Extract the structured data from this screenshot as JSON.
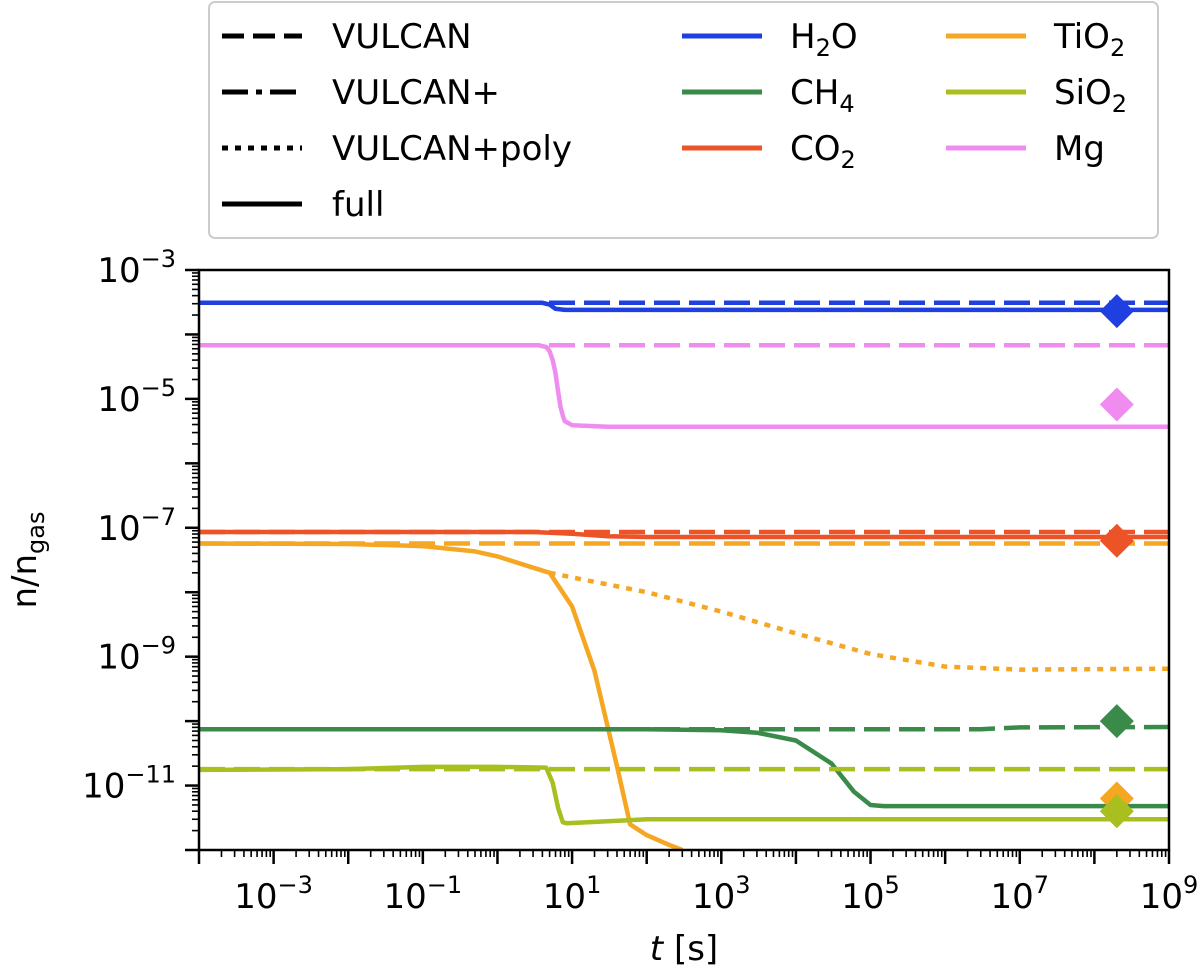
{
  "chart_data": {
    "type": "line",
    "xlabel_italic": "t",
    "xlabel_unit": " [s]",
    "ylabel_main": "n/n",
    "ylabel_sub": "gas",
    "xscale": "log",
    "yscale": "log",
    "xlim": [
      0.0001,
      1000000000
    ],
    "ylim": [
      1e-12,
      0.001
    ],
    "x_ticks": [
      {
        "value": 0.001,
        "base": "10",
        "exp": "−3"
      },
      {
        "value": 0.1,
        "base": "10",
        "exp": "−1"
      },
      {
        "value": 10,
        "base": "10",
        "exp": "1"
      },
      {
        "value": 1000,
        "base": "10",
        "exp": "3"
      },
      {
        "value": 100000,
        "base": "10",
        "exp": "5"
      },
      {
        "value": 10000000,
        "base": "10",
        "exp": "7"
      },
      {
        "value": 1000000000,
        "base": "10",
        "exp": "9"
      }
    ],
    "y_ticks": [
      {
        "value": 0.001,
        "base": "10",
        "exp": "−3"
      },
      {
        "value": 1e-05,
        "base": "10",
        "exp": "−5"
      },
      {
        "value": 1e-07,
        "base": "10",
        "exp": "−7"
      },
      {
        "value": 1e-09,
        "base": "10",
        "exp": "−9"
      },
      {
        "value": 1e-11,
        "base": "10",
        "exp": "−11"
      }
    ],
    "legend": {
      "placement": "top, above plot",
      "styles": [
        {
          "label": "VULCAN",
          "dash": "dashed"
        },
        {
          "label": "VULCAN+",
          "dash": "dashdot"
        },
        {
          "label": "VULCAN+poly",
          "dash": "dotted"
        },
        {
          "label": "full",
          "dash": "solid"
        }
      ],
      "species_col1": [
        {
          "base": "H",
          "sub": "2",
          "rest": "O",
          "color": "#1f3fe0"
        },
        {
          "base": "CH",
          "sub": "4",
          "rest": "",
          "color": "#3a8a4a"
        },
        {
          "base": "CO",
          "sub": "2",
          "rest": "",
          "color": "#ec5428"
        }
      ],
      "species_col2": [
        {
          "base": "TiO",
          "sub": "2",
          "rest": "",
          "color": "#f5a623"
        },
        {
          "base": "SiO",
          "sub": "2",
          "rest": "",
          "color": "#a8bf1f"
        },
        {
          "base": "Mg",
          "sub": "",
          "rest": "",
          "color": "#f08cf0"
        }
      ]
    },
    "series": [
      {
        "name": "H2O VULCAN",
        "species": "H2O",
        "color": "#1f3fe0",
        "style": "dashed",
        "x": [
          0.0001,
          1000000000
        ],
        "y": [
          0.00031,
          0.00031
        ]
      },
      {
        "name": "H2O full",
        "species": "H2O",
        "color": "#1f3fe0",
        "style": "solid",
        "x": [
          0.0001,
          4,
          5,
          6,
          8,
          30,
          1000000000
        ],
        "y": [
          0.00031,
          0.00031,
          0.00029,
          0.00025,
          0.00024,
          0.00024,
          0.00024
        ]
      },
      {
        "name": "Mg VULCAN",
        "species": "Mg",
        "color": "#f08cf0",
        "style": "dashed",
        "x": [
          0.0001,
          1000000000
        ],
        "y": [
          6.8e-05,
          6.8e-05
        ]
      },
      {
        "name": "Mg full",
        "species": "Mg",
        "color": "#f08cf0",
        "style": "solid",
        "x": [
          0.0001,
          3.5,
          4.5,
          5,
          5.5,
          6,
          6.5,
          7,
          7.5,
          8,
          10,
          30,
          1000000000
        ],
        "y": [
          6.8e-05,
          6.8e-05,
          6.4e-05,
          5.5e-05,
          4e-05,
          2.5e-05,
          1.3e-05,
          7.5e-06,
          5.5e-06,
          4.5e-06,
          3.9e-06,
          3.7e-06,
          3.7e-06
        ]
      },
      {
        "name": "CO2 VULCAN",
        "species": "CO2",
        "color": "#ec5428",
        "style": "dashed",
        "x": [
          0.0001,
          1000000000
        ],
        "y": [
          8.6e-08,
          8.6e-08
        ]
      },
      {
        "name": "CO2 full",
        "species": "CO2",
        "color": "#ec5428",
        "style": "solid",
        "x": [
          0.0001,
          3,
          10,
          30,
          100,
          1000000000
        ],
        "y": [
          8.6e-08,
          8.6e-08,
          8.1e-08,
          7.4e-08,
          7.2e-08,
          7.2e-08
        ]
      },
      {
        "name": "TiO2 VULCAN",
        "species": "TiO2",
        "color": "#f5a623",
        "style": "dashed",
        "x": [
          0.0001,
          1000000000
        ],
        "y": [
          5.7e-08,
          5.7e-08
        ]
      },
      {
        "name": "TiO2 VULCAN+poly",
        "species": "TiO2",
        "color": "#f5a623",
        "style": "dotted",
        "x": [
          5,
          10,
          100,
          1000,
          10000,
          100000,
          1000000,
          10000000,
          1000000000
        ],
        "y": [
          2e-08,
          1.7e-08,
          1e-08,
          5e-09,
          2.3e-09,
          1.1e-09,
          7e-10,
          6.3e-10,
          6.5e-10
        ]
      },
      {
        "name": "TiO2 full",
        "species": "TiO2",
        "color": "#f5a623",
        "style": "solid",
        "x": [
          0.0001,
          0.01,
          0.1,
          0.5,
          1,
          3,
          5,
          10,
          20,
          40,
          60,
          100,
          200,
          300
        ],
        "y": [
          5.7e-08,
          5.6e-08,
          5.2e-08,
          4.3e-08,
          3.6e-08,
          2.4e-08,
          2e-08,
          6e-09,
          6e-10,
          2e-11,
          2.5e-12,
          1.7e-12,
          1.2e-12,
          1e-12
        ]
      },
      {
        "name": "CH4 VULCAN",
        "species": "CH4",
        "color": "#3a8a4a",
        "style": "dashed",
        "x": [
          0.0001,
          3000000,
          10000000,
          1000000000
        ],
        "y": [
          7.5e-11,
          7.5e-11,
          8e-11,
          8.1e-11
        ]
      },
      {
        "name": "CH4 full",
        "species": "CH4",
        "color": "#3a8a4a",
        "style": "solid",
        "x": [
          0.0001,
          100,
          1000,
          3000,
          10000,
          30000,
          60000,
          100000,
          150000,
          1000000,
          1000000000
        ],
        "y": [
          7.5e-11,
          7.5e-11,
          7.2e-11,
          6.6e-11,
          5e-11,
          2.2e-11,
          8e-12,
          5e-12,
          4.8e-12,
          4.8e-12,
          4.8e-12
        ]
      },
      {
        "name": "SiO2 VULCAN",
        "species": "SiO2",
        "color": "#a8bf1f",
        "style": "dashed",
        "x": [
          0.0001,
          1000000000
        ],
        "y": [
          1.8e-11,
          1.8e-11
        ]
      },
      {
        "name": "SiO2 full",
        "species": "SiO2",
        "color": "#a8bf1f",
        "style": "solid",
        "x": [
          0.0001,
          0.01,
          0.1,
          1,
          4.5,
          5.5,
          6.5,
          7.5,
          8.5,
          100,
          1000000000
        ],
        "y": [
          1.75e-11,
          1.8e-11,
          1.95e-11,
          1.95e-11,
          1.9e-11,
          1.1e-11,
          4.5e-12,
          2.7e-12,
          2.6e-12,
          3e-12,
          3e-12
        ]
      }
    ],
    "markers": [
      {
        "species": "H2O",
        "color": "#1f3fe0",
        "x": 200000000,
        "y": 0.00023
      },
      {
        "species": "Mg",
        "color": "#f08cf0",
        "x": 200000000,
        "y": 8.2e-06
      },
      {
        "species": "CO2",
        "color": "#ec5428",
        "x": 200000000,
        "y": 6.3e-08
      },
      {
        "species": "CH4",
        "color": "#3a8a4a",
        "x": 200000000,
        "y": 1e-10
      },
      {
        "species": "TiO2",
        "color": "#f5a623",
        "x": 200000000,
        "y": 6.3e-12
      },
      {
        "species": "SiO2",
        "color": "#a8bf1f",
        "x": 200000000,
        "y": 4e-12
      }
    ]
  }
}
